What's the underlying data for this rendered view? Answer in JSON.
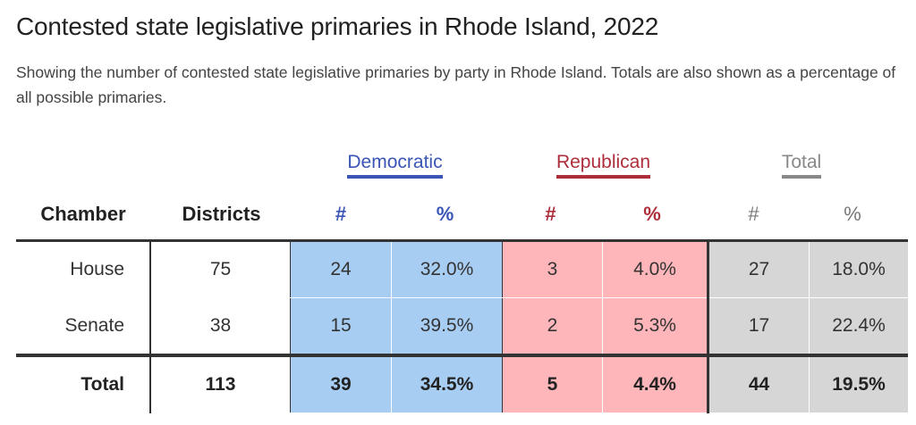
{
  "title": "Contested state legislative primaries in Rhode Island, 2022",
  "subtitle": "Showing the number of contested state legislative primaries by party in Rhode Island. Totals are also shown as a percentage of all possible primaries.",
  "party_headers": {
    "democratic": "Democratic",
    "republican": "Republican",
    "total": "Total"
  },
  "column_headers": {
    "chamber": "Chamber",
    "districts": "Districts",
    "dem_count": "#",
    "dem_pct": "%",
    "rep_count": "#",
    "rep_pct": "%",
    "total_count": "#",
    "total_pct": "%"
  },
  "colors": {
    "democratic": "#3a55b5",
    "democratic_fill": "#a8cdf3",
    "republican": "#ad2e3a",
    "republican_fill": "#ffb6ba",
    "total": "#888888",
    "total_fill": "#d6d6d6"
  },
  "rows": [
    {
      "chamber": "House",
      "districts": "75",
      "dem_count": "24",
      "dem_pct": "32.0%",
      "rep_count": "3",
      "rep_pct": "4.0%",
      "total_count": "27",
      "total_pct": "18.0%"
    },
    {
      "chamber": "Senate",
      "districts": "38",
      "dem_count": "15",
      "dem_pct": "39.5%",
      "rep_count": "2",
      "rep_pct": "5.3%",
      "total_count": "17",
      "total_pct": "22.4%"
    },
    {
      "chamber": "Total",
      "districts": "113",
      "dem_count": "39",
      "dem_pct": "34.5%",
      "rep_count": "5",
      "rep_pct": "4.4%",
      "total_count": "44",
      "total_pct": "19.5%"
    }
  ]
}
